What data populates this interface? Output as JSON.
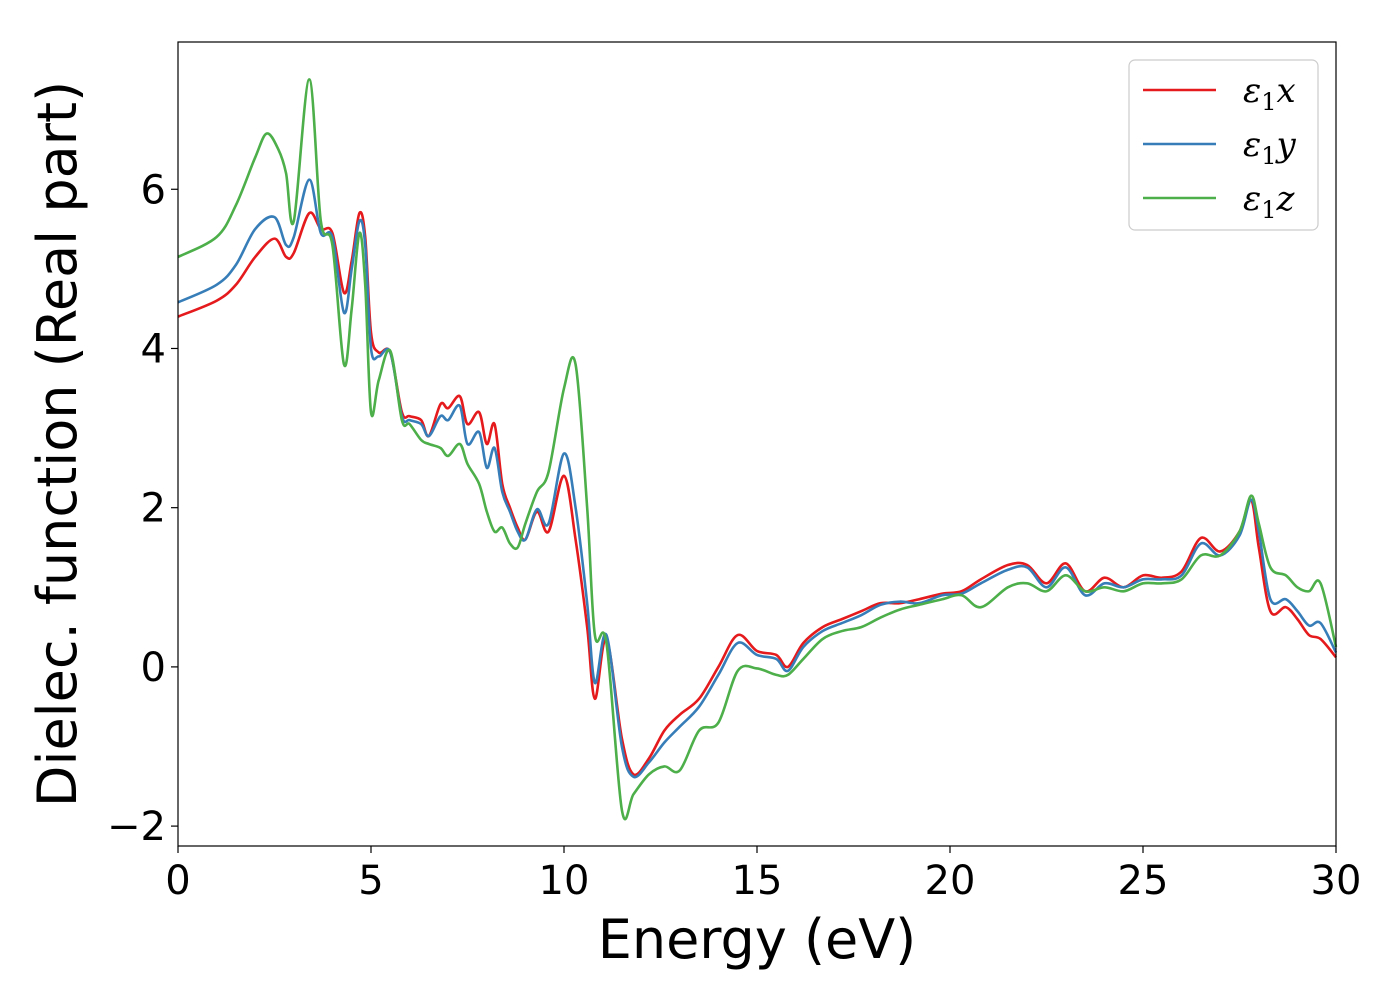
{
  "chart_data": {
    "type": "line",
    "title": "",
    "xlabel": "Energy (eV)",
    "ylabel": "Dielec. function (Real part)",
    "xlim": [
      0,
      30
    ],
    "ylim": [
      -2.25,
      7.85
    ],
    "xticks": [
      0,
      5,
      10,
      15,
      20,
      25,
      30
    ],
    "xtick_labels": [
      "0",
      "5",
      "10",
      "15",
      "20",
      "25",
      "30"
    ],
    "yticks": [
      -2,
      0,
      2,
      4,
      6
    ],
    "ytick_labels": [
      "−2",
      "0",
      "2",
      "4",
      "6"
    ],
    "grid": false,
    "legend_position": "top-right",
    "series": [
      {
        "name": "ε₁x",
        "legend_symbol": "ε",
        "legend_sub": "1",
        "legend_axis": "x",
        "color": "#e41a1c",
        "x": [
          0,
          1,
          1.5,
          2,
          2.5,
          2.8,
          3.0,
          3.4,
          3.7,
          4.0,
          4.3,
          4.5,
          4.7,
          4.85,
          5.0,
          5.2,
          5.5,
          5.8,
          6.0,
          6.3,
          6.5,
          6.8,
          7.0,
          7.3,
          7.5,
          7.8,
          8.0,
          8.2,
          8.4,
          8.6,
          8.8,
          9.0,
          9.3,
          9.6,
          10.0,
          10.3,
          10.6,
          10.8,
          11.1,
          11.5,
          11.8,
          12.2,
          12.6,
          13.0,
          13.5,
          14.0,
          14.5,
          15.0,
          15.5,
          15.8,
          16.2,
          16.7,
          17.2,
          17.7,
          18.2,
          18.7,
          19.2,
          19.8,
          20.3,
          20.8,
          21.5,
          22.0,
          22.5,
          23.0,
          23.5,
          24.0,
          24.5,
          25.0,
          25.5,
          26.0,
          26.5,
          27.0,
          27.5,
          27.8,
          28.0,
          28.3,
          28.7,
          29.0,
          29.3,
          29.6,
          30.0
        ],
        "y": [
          4.4,
          4.6,
          4.8,
          5.15,
          5.38,
          5.15,
          5.2,
          5.7,
          5.5,
          5.45,
          4.7,
          5.1,
          5.7,
          5.4,
          4.2,
          3.95,
          3.95,
          3.2,
          3.15,
          3.1,
          2.9,
          3.3,
          3.25,
          3.4,
          3.05,
          3.2,
          2.8,
          3.05,
          2.3,
          2.0,
          1.75,
          1.6,
          1.95,
          1.7,
          2.4,
          1.6,
          0.5,
          -0.4,
          0.35,
          -0.9,
          -1.35,
          -1.15,
          -0.8,
          -0.6,
          -0.4,
          0.0,
          0.4,
          0.2,
          0.15,
          0.0,
          0.3,
          0.5,
          0.6,
          0.7,
          0.8,
          0.8,
          0.85,
          0.92,
          0.95,
          1.1,
          1.28,
          1.28,
          1.05,
          1.3,
          0.95,
          1.12,
          1.0,
          1.15,
          1.12,
          1.2,
          1.62,
          1.45,
          1.7,
          2.1,
          1.5,
          0.7,
          0.75,
          0.6,
          0.4,
          0.35,
          0.12
        ]
      },
      {
        "name": "ε₁y",
        "legend_symbol": "ε",
        "legend_sub": "1",
        "legend_axis": "y",
        "color": "#377eb8",
        "x": [
          0,
          1,
          1.5,
          2,
          2.5,
          2.8,
          3.0,
          3.4,
          3.7,
          4.0,
          4.3,
          4.5,
          4.7,
          4.85,
          5.0,
          5.2,
          5.5,
          5.8,
          6.0,
          6.3,
          6.5,
          6.8,
          7.0,
          7.3,
          7.5,
          7.8,
          8.0,
          8.2,
          8.4,
          8.6,
          8.8,
          9.0,
          9.3,
          9.6,
          10.0,
          10.3,
          10.6,
          10.8,
          11.1,
          11.5,
          11.8,
          12.2,
          12.6,
          13.0,
          13.5,
          14.0,
          14.5,
          15.0,
          15.5,
          15.8,
          16.2,
          16.7,
          17.2,
          17.7,
          18.2,
          18.7,
          19.2,
          19.8,
          20.3,
          20.8,
          21.5,
          22.0,
          22.5,
          23.0,
          23.5,
          24.0,
          24.5,
          25.0,
          25.5,
          26.0,
          26.5,
          27.0,
          27.5,
          27.8,
          28.0,
          28.3,
          28.7,
          29.0,
          29.3,
          29.6,
          30.0
        ],
        "y": [
          4.58,
          4.8,
          5.05,
          5.5,
          5.65,
          5.3,
          5.4,
          6.12,
          5.45,
          5.4,
          4.45,
          5.0,
          5.6,
          5.3,
          4.0,
          3.9,
          3.95,
          3.15,
          3.1,
          3.05,
          2.9,
          3.15,
          3.1,
          3.28,
          2.8,
          2.95,
          2.5,
          2.75,
          2.2,
          1.95,
          1.7,
          1.6,
          1.98,
          1.8,
          2.68,
          2.0,
          0.8,
          -0.2,
          0.4,
          -1.0,
          -1.38,
          -1.2,
          -0.95,
          -0.75,
          -0.5,
          -0.1,
          0.3,
          0.15,
          0.1,
          -0.05,
          0.25,
          0.45,
          0.55,
          0.65,
          0.78,
          0.82,
          0.8,
          0.9,
          0.92,
          1.05,
          1.22,
          1.25,
          1.0,
          1.25,
          0.9,
          1.05,
          1.0,
          1.1,
          1.1,
          1.15,
          1.55,
          1.4,
          1.65,
          2.1,
          1.7,
          0.85,
          0.85,
          0.7,
          0.52,
          0.55,
          0.18
        ]
      },
      {
        "name": "ε₁z",
        "legend_symbol": "ε",
        "legend_sub": "1",
        "legend_axis": "z",
        "color": "#4daf4a",
        "x": [
          0,
          1,
          1.5,
          2,
          2.3,
          2.6,
          2.8,
          3.0,
          3.4,
          3.7,
          4.0,
          4.3,
          4.5,
          4.7,
          4.85,
          5.0,
          5.2,
          5.5,
          5.8,
          6.0,
          6.3,
          6.5,
          6.8,
          7.0,
          7.3,
          7.5,
          7.8,
          8.0,
          8.2,
          8.4,
          8.6,
          8.8,
          9.0,
          9.3,
          9.6,
          10.0,
          10.3,
          10.6,
          10.8,
          11.1,
          11.5,
          11.8,
          12.2,
          12.6,
          13.0,
          13.5,
          14.0,
          14.5,
          15.0,
          15.5,
          15.8,
          16.2,
          16.7,
          17.2,
          17.7,
          18.2,
          18.7,
          19.2,
          19.8,
          20.3,
          20.8,
          21.5,
          22.0,
          22.5,
          23.0,
          23.5,
          24.0,
          24.5,
          25.0,
          25.5,
          26.0,
          26.5,
          27.0,
          27.5,
          27.8,
          28.0,
          28.3,
          28.7,
          29.0,
          29.3,
          29.6,
          30.0
        ],
        "y": [
          5.15,
          5.4,
          5.8,
          6.4,
          6.7,
          6.5,
          6.2,
          5.6,
          7.38,
          5.6,
          5.3,
          3.8,
          4.5,
          5.45,
          4.8,
          3.2,
          3.6,
          3.97,
          3.1,
          3.05,
          2.85,
          2.8,
          2.75,
          2.65,
          2.8,
          2.55,
          2.3,
          1.95,
          1.7,
          1.75,
          1.55,
          1.5,
          1.8,
          2.2,
          2.45,
          3.5,
          3.8,
          2.0,
          0.4,
          0.3,
          -1.8,
          -1.6,
          -1.35,
          -1.25,
          -1.3,
          -0.8,
          -0.7,
          -0.05,
          -0.02,
          -0.1,
          -0.1,
          0.1,
          0.35,
          0.45,
          0.5,
          0.62,
          0.72,
          0.78,
          0.85,
          0.9,
          0.75,
          1.0,
          1.05,
          0.95,
          1.15,
          0.95,
          1.0,
          0.95,
          1.05,
          1.05,
          1.1,
          1.4,
          1.4,
          1.7,
          2.15,
          1.8,
          1.25,
          1.15,
          1.0,
          0.95,
          1.05,
          0.25
        ]
      }
    ]
  }
}
